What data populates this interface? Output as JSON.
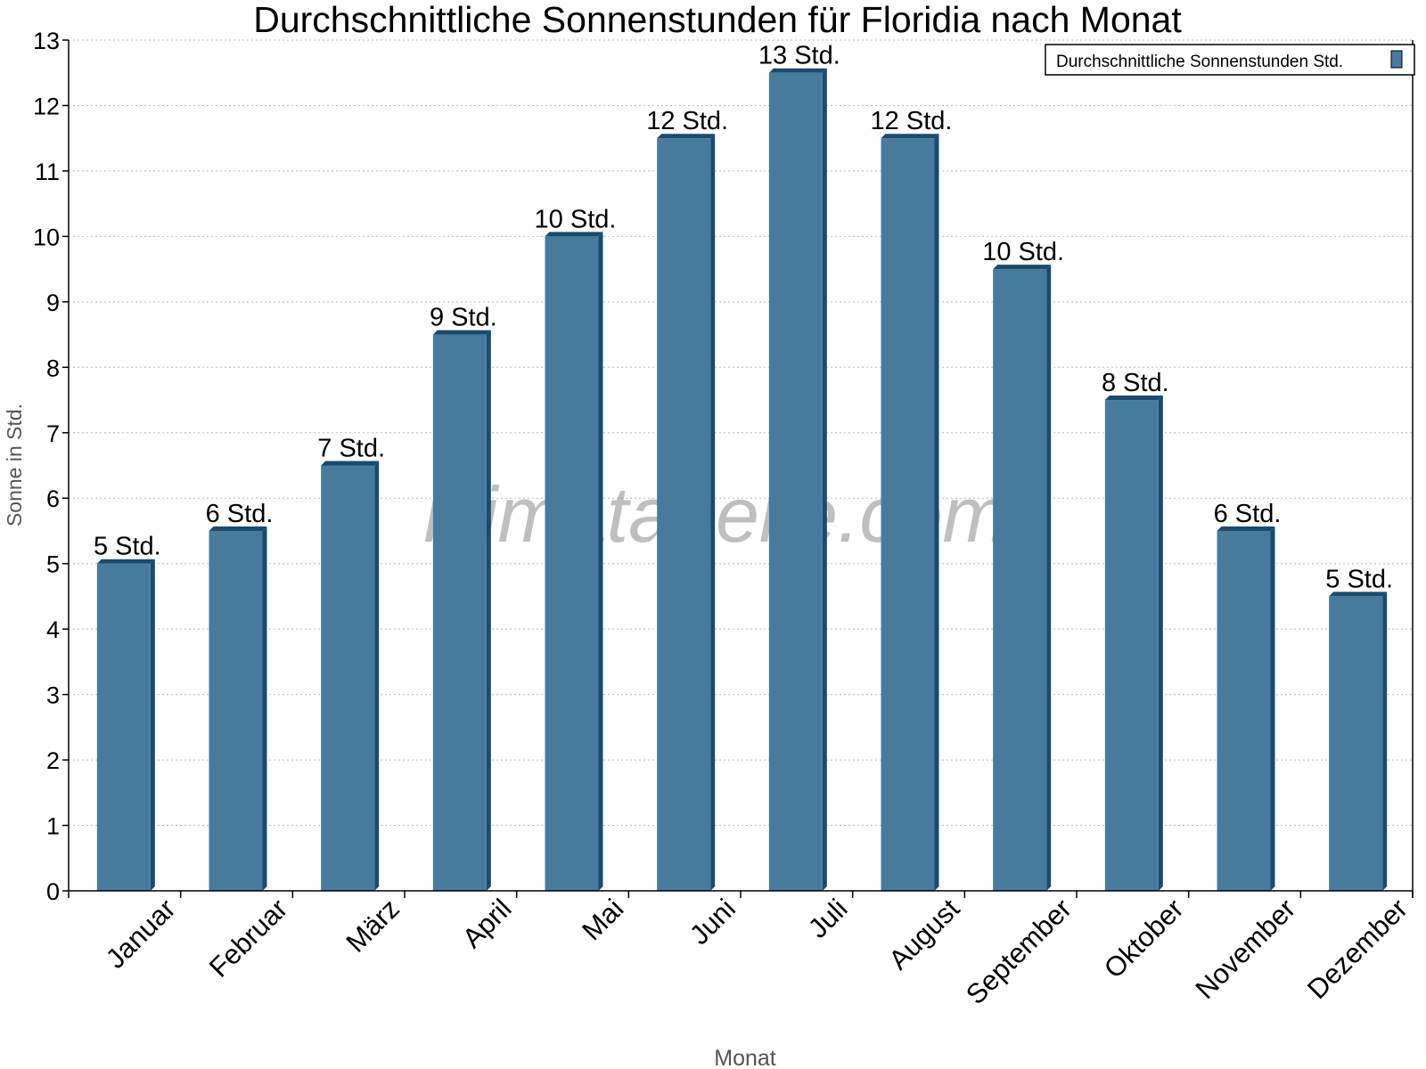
{
  "chart_data": {
    "type": "bar",
    "title": "Durchschnittliche Sonnenstunden für Floridia nach Monat",
    "xlabel": "Monat",
    "ylabel": "Sonne in Std.",
    "ylim": [
      0,
      13
    ],
    "yticks": [
      0,
      1,
      2,
      3,
      4,
      5,
      6,
      7,
      8,
      9,
      10,
      11,
      12,
      13
    ],
    "grid": true,
    "legend_position": "top-right",
    "categories": [
      "Januar",
      "Februar",
      "März",
      "April",
      "Mai",
      "Juni",
      "Juli",
      "August",
      "September",
      "Oktober",
      "November",
      "Dezember"
    ],
    "series": [
      {
        "name": "Durchschnittliche Sonnenstunden Std.",
        "values": [
          5,
          5.5,
          6.5,
          8.5,
          10,
          11.5,
          12.5,
          11.5,
          9.5,
          7.5,
          5.5,
          4.5
        ],
        "data_labels": [
          "5 Std.",
          "6 Std.",
          "7 Std.",
          "9 Std.",
          "10 Std.",
          "12 Std.",
          "13 Std.",
          "12 Std.",
          "10 Std.",
          "8 Std.",
          "6 Std.",
          "5 Std."
        ],
        "color": "#467b9e",
        "side_color": "#1b4a6b"
      }
    ],
    "watermark": "klimatabelle.com"
  }
}
